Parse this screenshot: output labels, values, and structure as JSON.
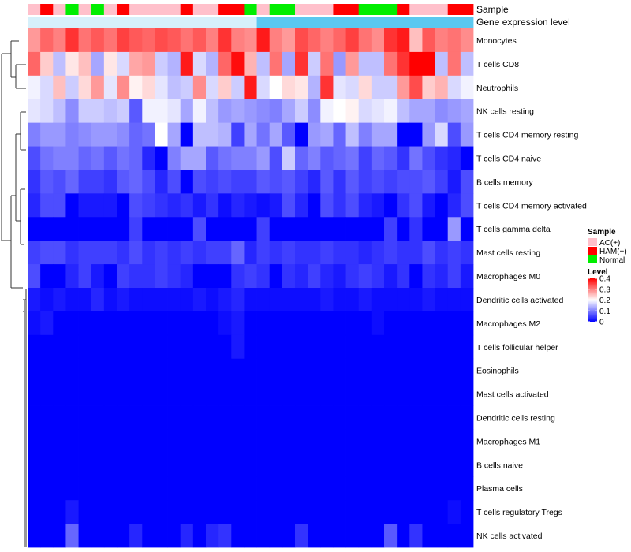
{
  "chart_data": {
    "type": "heatmap",
    "color_scale": {
      "low": "#0000ff",
      "mid": "#ffffff",
      "high": "#ff0000",
      "min": 0,
      "mid_value": 0.2,
      "max": 0.4
    },
    "annotations": [
      {
        "label": "Sample",
        "values": [
          "AC(+)",
          "HAM(+)",
          "AC(+)",
          "Normal",
          "AC(+)",
          "Normal",
          "AC(+)",
          "HAM(+)",
          "AC(+)",
          "AC(+)",
          "AC(+)",
          "AC(+)",
          "HAM(+)",
          "AC(+)",
          "AC(+)",
          "HAM(+)",
          "HAM(+)",
          "Normal",
          "AC(+)",
          "Normal",
          "Normal",
          "AC(+)",
          "AC(+)",
          "AC(+)",
          "HAM(+)",
          "HAM(+)",
          "Normal",
          "Normal",
          "Normal",
          "HAM(+)",
          "AC(+)",
          "AC(+)",
          "AC(+)",
          "HAM(+)",
          "HAM(+)"
        ]
      },
      {
        "label": "Gene expression level",
        "values": [
          "low",
          "low",
          "low",
          "low",
          "low",
          "low",
          "low",
          "low",
          "low",
          "low",
          "low",
          "low",
          "low",
          "low",
          "low",
          "low",
          "low",
          "low",
          "high",
          "high",
          "high",
          "high",
          "high",
          "high",
          "high",
          "high",
          "high",
          "high",
          "high",
          "high",
          "high",
          "high",
          "high",
          "high",
          "high"
        ]
      }
    ],
    "legend": {
      "sample_title": "Sample",
      "sample_entries": [
        {
          "label": "AC(+)",
          "color": "#ffc0cb"
        },
        {
          "label": "HAM(+)",
          "color": "#ff0000"
        },
        {
          "label": "Normal",
          "color": "#00ee00"
        }
      ],
      "level_title": "Level",
      "level_ticks": [
        "0.4",
        "0.3",
        "0.2",
        "0.1",
        "0"
      ],
      "level_tick_values": [
        0.4,
        0.3,
        0.2,
        0.1,
        0
      ]
    },
    "expression_colors": {
      "low": "#d6f0fb",
      "high": "#5bc8f0"
    },
    "rows": [
      "Monocytes",
      "T cells CD8",
      "Neutrophils",
      "NK cells resting",
      "T cells CD4 memory resting",
      "T cells CD4 naive",
      "B cells memory",
      "T cells CD4 memory activated",
      "T cells gamma delta",
      "Mast cells resting",
      "Macrophages M0",
      "Dendritic cells activated",
      "Macrophages M2",
      "T cells follicular helper",
      "Eosinophils",
      "Mast cells activated",
      "Dendritic cells resting",
      "Macrophages M1",
      "B cells naive",
      "Plasma cells",
      "T cells regulatory  Tregs",
      "NK cells activated"
    ],
    "values": [
      [
        0.28,
        0.32,
        0.3,
        0.36,
        0.31,
        0.33,
        0.31,
        0.35,
        0.33,
        0.32,
        0.34,
        0.33,
        0.31,
        0.33,
        0.3,
        0.36,
        0.3,
        0.29,
        0.38,
        0.3,
        0.28,
        0.34,
        0.32,
        0.3,
        0.32,
        0.35,
        0.31,
        0.29,
        0.36,
        0.38,
        0.25,
        0.33,
        0.3,
        0.31,
        0.29
      ],
      [
        0.32,
        0.24,
        0.15,
        0.22,
        0.25,
        0.13,
        0.22,
        0.17,
        0.27,
        0.28,
        0.16,
        0.14,
        0.38,
        0.17,
        0.14,
        0.32,
        0.39,
        0.26,
        0.15,
        0.31,
        0.13,
        0.36,
        0.16,
        0.31,
        0.12,
        0.28,
        0.15,
        0.15,
        0.31,
        0.36,
        0.4,
        0.4,
        0.15,
        0.31,
        0.15
      ],
      [
        0.19,
        0.17,
        0.25,
        0.16,
        0.23,
        0.28,
        0.18,
        0.29,
        0.21,
        0.23,
        0.18,
        0.15,
        0.16,
        0.29,
        0.17,
        0.24,
        0.16,
        0.38,
        0.17,
        0.2,
        0.23,
        0.22,
        0.14,
        0.36,
        0.18,
        0.17,
        0.23,
        0.16,
        0.16,
        0.28,
        0.34,
        0.24,
        0.26,
        0.17,
        0.19
      ],
      [
        0.18,
        0.17,
        0.15,
        0.11,
        0.16,
        0.16,
        0.15,
        0.16,
        0.07,
        0.19,
        0.19,
        0.18,
        0.13,
        0.19,
        0.15,
        0.12,
        0.13,
        0.12,
        0.11,
        0.1,
        0.13,
        0.16,
        0.11,
        0.19,
        0.2,
        0.21,
        0.17,
        0.18,
        0.19,
        0.15,
        0.13,
        0.13,
        0.11,
        0.12,
        0.13
      ],
      [
        0.1,
        0.12,
        0.12,
        0.1,
        0.11,
        0.12,
        0.12,
        0.11,
        0.08,
        0.09,
        0.2,
        0.13,
        0.0,
        0.15,
        0.15,
        0.14,
        0.05,
        0.13,
        0.09,
        0.13,
        0.07,
        0.0,
        0.12,
        0.13,
        0.08,
        0.15,
        0.1,
        0.13,
        0.13,
        0.0,
        0.0,
        0.12,
        0.17,
        0.06,
        0.12
      ],
      [
        0.06,
        0.09,
        0.1,
        0.1,
        0.08,
        0.09,
        0.07,
        0.09,
        0.08,
        0.03,
        0.0,
        0.1,
        0.13,
        0.13,
        0.07,
        0.09,
        0.1,
        0.1,
        0.12,
        0.06,
        0.16,
        0.08,
        0.1,
        0.07,
        0.08,
        0.09,
        0.05,
        0.08,
        0.07,
        0.04,
        0.09,
        0.06,
        0.04,
        0.03,
        0.0
      ],
      [
        0.04,
        0.07,
        0.06,
        0.08,
        0.05,
        0.05,
        0.04,
        0.07,
        0.08,
        0.06,
        0.03,
        0.06,
        0.0,
        0.06,
        0.05,
        0.06,
        0.05,
        0.05,
        0.07,
        0.06,
        0.07,
        0.05,
        0.03,
        0.07,
        0.04,
        0.07,
        0.05,
        0.06,
        0.05,
        0.06,
        0.06,
        0.07,
        0.05,
        0.02,
        0.06
      ],
      [
        0.03,
        0.06,
        0.06,
        0.0,
        0.02,
        0.02,
        0.02,
        0.0,
        0.06,
        0.05,
        0.04,
        0.03,
        0.04,
        0.02,
        0.04,
        0.01,
        0.03,
        0.02,
        0.01,
        0.02,
        0.06,
        0.03,
        0.0,
        0.06,
        0.04,
        0.06,
        0.03,
        0.02,
        0.0,
        0.04,
        0.06,
        0.02,
        0.0,
        0.03,
        0.06
      ],
      [
        0.0,
        0.0,
        0.0,
        0.0,
        0.0,
        0.0,
        0.0,
        0.0,
        0.05,
        0.0,
        0.0,
        0.0,
        0.0,
        0.06,
        0.0,
        0.0,
        0.0,
        0.0,
        0.05,
        0.0,
        0.0,
        0.0,
        0.0,
        0.0,
        0.0,
        0.0,
        0.0,
        0.0,
        0.05,
        0.0,
        0.04,
        0.0,
        0.0,
        0.12,
        0.0
      ],
      [
        0.05,
        0.06,
        0.06,
        0.04,
        0.05,
        0.05,
        0.05,
        0.04,
        0.06,
        0.04,
        0.05,
        0.04,
        0.05,
        0.04,
        0.05,
        0.05,
        0.08,
        0.03,
        0.05,
        0.04,
        0.05,
        0.04,
        0.04,
        0.05,
        0.04,
        0.04,
        0.03,
        0.04,
        0.05,
        0.04,
        0.04,
        0.06,
        0.04,
        0.05,
        0.04
      ],
      [
        0.06,
        0.0,
        0.0,
        0.03,
        0.05,
        0.02,
        0.0,
        0.05,
        0.04,
        0.04,
        0.05,
        0.04,
        0.03,
        0.0,
        0.0,
        0.0,
        0.04,
        0.05,
        0.04,
        0.0,
        0.04,
        0.03,
        0.05,
        0.03,
        0.02,
        0.04,
        0.05,
        0.04,
        0.02,
        0.04,
        0.0,
        0.04,
        0.03,
        0.05,
        0.02
      ],
      [
        0.02,
        0.01,
        0.02,
        0.01,
        0.01,
        0.03,
        0.01,
        0.02,
        0.01,
        0.01,
        0.01,
        0.01,
        0.01,
        0.02,
        0.01,
        0.02,
        0.03,
        0.01,
        0.01,
        0.01,
        0.01,
        0.01,
        0.01,
        0.02,
        0.01,
        0.01,
        0.02,
        0.01,
        0.01,
        0.01,
        0.01,
        0.02,
        0.01,
        0.01,
        0.01
      ],
      [
        0.01,
        0.02,
        0.0,
        0.0,
        0.0,
        0.0,
        0.0,
        0.0,
        0.0,
        0.0,
        0.0,
        0.0,
        0.0,
        0.0,
        0.0,
        0.01,
        0.02,
        0.0,
        0.0,
        0.0,
        0.0,
        0.0,
        0.0,
        0.0,
        0.0,
        0.0,
        0.0,
        0.01,
        0.0,
        0.0,
        0.0,
        0.0,
        0.0,
        0.0,
        0.0
      ],
      [
        0.0,
        0.0,
        0.0,
        0.0,
        0.0,
        0.0,
        0.0,
        0.0,
        0.0,
        0.0,
        0.0,
        0.0,
        0.0,
        0.0,
        0.0,
        0.0,
        0.02,
        0.0,
        0.0,
        0.0,
        0.0,
        0.0,
        0.0,
        0.0,
        0.0,
        0.0,
        0.0,
        0.0,
        0.0,
        0.0,
        0.0,
        0.0,
        0.0,
        0.0,
        0.0
      ],
      [
        0.0,
        0.0,
        0.0,
        0.0,
        0.0,
        0.0,
        0.0,
        0.0,
        0.0,
        0.0,
        0.0,
        0.0,
        0.0,
        0.0,
        0.0,
        0.0,
        0.0,
        0.0,
        0.0,
        0.0,
        0.0,
        0.0,
        0.0,
        0.0,
        0.0,
        0.0,
        0.0,
        0.0,
        0.0,
        0.0,
        0.0,
        0.0,
        0.0,
        0.0,
        0.0
      ],
      [
        0.0,
        0.0,
        0.0,
        0.0,
        0.0,
        0.0,
        0.0,
        0.0,
        0.0,
        0.0,
        0.0,
        0.0,
        0.0,
        0.0,
        0.0,
        0.0,
        0.0,
        0.0,
        0.0,
        0.0,
        0.0,
        0.0,
        0.0,
        0.0,
        0.0,
        0.0,
        0.0,
        0.0,
        0.0,
        0.0,
        0.0,
        0.0,
        0.0,
        0.0,
        0.0
      ],
      [
        0.0,
        0.0,
        0.0,
        0.0,
        0.0,
        0.0,
        0.0,
        0.0,
        0.0,
        0.0,
        0.0,
        0.0,
        0.0,
        0.0,
        0.0,
        0.0,
        0.0,
        0.0,
        0.0,
        0.0,
        0.0,
        0.0,
        0.0,
        0.0,
        0.0,
        0.0,
        0.0,
        0.0,
        0.0,
        0.0,
        0.0,
        0.0,
        0.0,
        0.0,
        0.0
      ],
      [
        0.0,
        0.0,
        0.0,
        0.0,
        0.0,
        0.0,
        0.0,
        0.0,
        0.0,
        0.0,
        0.0,
        0.0,
        0.0,
        0.0,
        0.0,
        0.0,
        0.0,
        0.0,
        0.0,
        0.0,
        0.0,
        0.0,
        0.0,
        0.0,
        0.0,
        0.0,
        0.0,
        0.0,
        0.0,
        0.0,
        0.0,
        0.0,
        0.0,
        0.0,
        0.0
      ],
      [
        0.0,
        0.0,
        0.0,
        0.0,
        0.0,
        0.0,
        0.0,
        0.0,
        0.0,
        0.0,
        0.0,
        0.0,
        0.0,
        0.0,
        0.0,
        0.0,
        0.0,
        0.0,
        0.0,
        0.0,
        0.0,
        0.0,
        0.0,
        0.0,
        0.0,
        0.0,
        0.0,
        0.0,
        0.0,
        0.0,
        0.0,
        0.0,
        0.0,
        0.0,
        0.0
      ],
      [
        0.0,
        0.0,
        0.0,
        0.0,
        0.0,
        0.0,
        0.0,
        0.0,
        0.0,
        0.0,
        0.0,
        0.0,
        0.0,
        0.0,
        0.0,
        0.0,
        0.0,
        0.0,
        0.0,
        0.0,
        0.0,
        0.0,
        0.0,
        0.0,
        0.0,
        0.0,
        0.0,
        0.0,
        0.0,
        0.0,
        0.0,
        0.0,
        0.0,
        0.0,
        0.0
      ],
      [
        0.0,
        0.0,
        0.0,
        0.02,
        0.0,
        0.0,
        0.0,
        0.0,
        0.0,
        0.0,
        0.0,
        0.0,
        0.0,
        0.0,
        0.0,
        0.0,
        0.0,
        0.0,
        0.0,
        0.0,
        0.0,
        0.0,
        0.0,
        0.0,
        0.0,
        0.0,
        0.0,
        0.0,
        0.0,
        0.0,
        0.0,
        0.0,
        0.0,
        0.01,
        0.0
      ],
      [
        0.0,
        0.0,
        0.0,
        0.08,
        0.0,
        0.0,
        0.0,
        0.0,
        0.03,
        0.0,
        0.0,
        0.0,
        0.03,
        0.0,
        0.03,
        0.04,
        0.0,
        0.0,
        0.0,
        0.0,
        0.0,
        0.04,
        0.0,
        0.0,
        0.0,
        0.0,
        0.0,
        0.0,
        0.07,
        0.0,
        0.04,
        0.0,
        0.0,
        0.0,
        0.0
      ]
    ]
  }
}
